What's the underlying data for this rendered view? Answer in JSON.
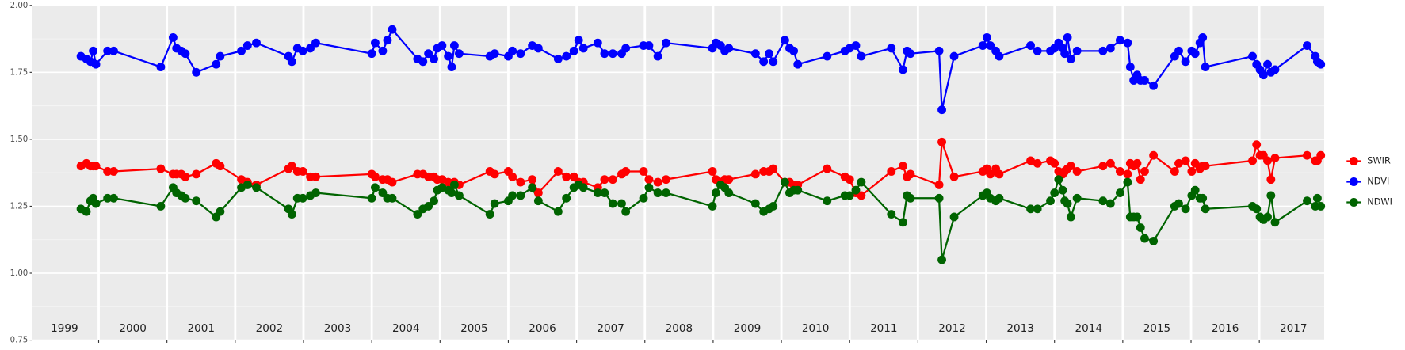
{
  "chart_data": {
    "type": "line",
    "x": [
      1999.74,
      1999.82,
      1999.88,
      1999.92,
      1999.96,
      2000.13,
      2000.22,
      2000.91,
      2001.09,
      2001.14,
      2001.21,
      2001.27,
      2001.43,
      2001.72,
      2001.78,
      2002.09,
      2002.18,
      2002.31,
      2002.78,
      2002.83,
      2002.91,
      2002.99,
      2003.1,
      2003.18,
      2004.0,
      2004.05,
      2004.16,
      2004.23,
      2004.3,
      2004.67,
      2004.75,
      2004.83,
      2004.91,
      2004.96,
      2005.03,
      2005.12,
      2005.17,
      2005.21,
      2005.28,
      2005.73,
      2005.8,
      2006.0,
      2006.06,
      2006.18,
      2006.35,
      2006.44,
      2006.73,
      2006.85,
      2006.96,
      2007.03,
      2007.1,
      2007.31,
      2007.41,
      2007.53,
      2007.66,
      2007.72,
      2007.98,
      2008.06,
      2008.19,
      2008.31,
      2008.99,
      2009.04,
      2009.11,
      2009.17,
      2009.23,
      2009.62,
      2009.74,
      2009.82,
      2009.88,
      2010.05,
      2010.12,
      2010.18,
      2010.24,
      2010.67,
      2010.93,
      2011.0,
      2011.09,
      2011.17,
      2011.61,
      2011.78,
      2011.84,
      2011.89,
      2012.31,
      2012.35,
      2012.53,
      2012.95,
      2013.01,
      2013.06,
      2013.14,
      2013.19,
      2013.65,
      2013.75,
      2013.94,
      2014.0,
      2014.06,
      2014.12,
      2014.15,
      2014.19,
      2014.24,
      2014.33,
      2014.71,
      2014.82,
      2014.96,
      2015.07,
      2015.11,
      2015.16,
      2015.21,
      2015.26,
      2015.32,
      2015.45,
      2015.76,
      2015.82,
      2015.92,
      2016.01,
      2016.06,
      2016.13,
      2016.17,
      2016.21,
      2016.9,
      2016.96,
      2017.01,
      2017.06,
      2017.12,
      2017.17,
      2017.23,
      2017.7,
      2017.82,
      2017.85,
      2017.9
    ],
    "series": [
      {
        "name": "SWIR",
        "color": "#ff0000",
        "values": [
          1.4,
          1.41,
          1.4,
          1.4,
          1.4,
          1.38,
          1.38,
          1.39,
          1.37,
          1.37,
          1.37,
          1.36,
          1.37,
          1.41,
          1.4,
          1.35,
          1.34,
          1.33,
          1.39,
          1.4,
          1.38,
          1.38,
          1.36,
          1.36,
          1.37,
          1.36,
          1.35,
          1.35,
          1.34,
          1.37,
          1.37,
          1.36,
          1.36,
          1.35,
          1.35,
          1.34,
          1.33,
          1.34,
          1.33,
          1.38,
          1.37,
          1.38,
          1.36,
          1.34,
          1.35,
          1.3,
          1.38,
          1.36,
          1.36,
          1.34,
          1.34,
          1.32,
          1.35,
          1.35,
          1.37,
          1.38,
          1.38,
          1.35,
          1.34,
          1.35,
          1.38,
          1.35,
          1.34,
          1.35,
          1.35,
          1.37,
          1.38,
          1.38,
          1.39,
          1.34,
          1.34,
          1.33,
          1.33,
          1.39,
          1.36,
          1.35,
          1.3,
          1.29,
          1.38,
          1.4,
          1.36,
          1.37,
          1.33,
          1.49,
          1.36,
          1.38,
          1.39,
          1.37,
          1.39,
          1.37,
          1.42,
          1.41,
          1.42,
          1.41,
          1.38,
          1.37,
          1.38,
          1.39,
          1.4,
          1.38,
          1.4,
          1.41,
          1.38,
          1.37,
          1.41,
          1.4,
          1.41,
          1.35,
          1.38,
          1.44,
          1.38,
          1.41,
          1.42,
          1.38,
          1.41,
          1.39,
          1.4,
          1.4,
          1.42,
          1.48,
          1.44,
          1.44,
          1.42,
          1.35,
          1.43,
          1.44,
          1.42,
          1.42,
          1.44
        ]
      },
      {
        "name": "NDVI",
        "color": "#0000ff",
        "values": [
          1.81,
          1.8,
          1.79,
          1.83,
          1.78,
          1.83,
          1.83,
          1.77,
          1.88,
          1.84,
          1.83,
          1.82,
          1.75,
          1.78,
          1.81,
          1.83,
          1.85,
          1.86,
          1.81,
          1.79,
          1.84,
          1.83,
          1.84,
          1.86,
          1.82,
          1.86,
          1.83,
          1.87,
          1.91,
          1.8,
          1.79,
          1.82,
          1.8,
          1.84,
          1.85,
          1.81,
          1.77,
          1.85,
          1.82,
          1.81,
          1.82,
          1.81,
          1.83,
          1.82,
          1.85,
          1.84,
          1.8,
          1.81,
          1.83,
          1.87,
          1.84,
          1.86,
          1.82,
          1.82,
          1.82,
          1.84,
          1.85,
          1.85,
          1.81,
          1.86,
          1.84,
          1.86,
          1.85,
          1.83,
          1.84,
          1.82,
          1.79,
          1.82,
          1.79,
          1.87,
          1.84,
          1.83,
          1.78,
          1.81,
          1.83,
          1.84,
          1.85,
          1.81,
          1.84,
          1.76,
          1.83,
          1.82,
          1.83,
          1.61,
          1.81,
          1.85,
          1.88,
          1.85,
          1.83,
          1.81,
          1.85,
          1.83,
          1.83,
          1.84,
          1.86,
          1.84,
          1.82,
          1.88,
          1.8,
          1.83,
          1.83,
          1.84,
          1.87,
          1.86,
          1.77,
          1.72,
          1.74,
          1.72,
          1.72,
          1.7,
          1.81,
          1.83,
          1.79,
          1.83,
          1.82,
          1.86,
          1.88,
          1.77,
          1.81,
          1.78,
          1.76,
          1.74,
          1.78,
          1.75,
          1.76,
          1.85,
          1.81,
          1.79,
          1.78
        ]
      },
      {
        "name": "NDWI",
        "color": "#006400",
        "values": [
          1.24,
          1.23,
          1.27,
          1.28,
          1.26,
          1.28,
          1.28,
          1.25,
          1.32,
          1.3,
          1.29,
          1.28,
          1.27,
          1.21,
          1.23,
          1.32,
          1.33,
          1.32,
          1.24,
          1.22,
          1.28,
          1.28,
          1.29,
          1.3,
          1.28,
          1.32,
          1.3,
          1.28,
          1.28,
          1.22,
          1.24,
          1.25,
          1.27,
          1.31,
          1.32,
          1.31,
          1.3,
          1.33,
          1.29,
          1.22,
          1.26,
          1.27,
          1.29,
          1.29,
          1.32,
          1.27,
          1.23,
          1.28,
          1.32,
          1.33,
          1.32,
          1.3,
          1.3,
          1.26,
          1.26,
          1.23,
          1.28,
          1.32,
          1.3,
          1.3,
          1.25,
          1.3,
          1.33,
          1.32,
          1.3,
          1.26,
          1.23,
          1.24,
          1.25,
          1.34,
          1.3,
          1.31,
          1.31,
          1.27,
          1.29,
          1.29,
          1.31,
          1.34,
          1.22,
          1.19,
          1.29,
          1.28,
          1.28,
          1.05,
          1.21,
          1.29,
          1.3,
          1.28,
          1.27,
          1.28,
          1.24,
          1.24,
          1.27,
          1.3,
          1.35,
          1.31,
          1.27,
          1.26,
          1.21,
          1.28,
          1.27,
          1.26,
          1.3,
          1.34,
          1.21,
          1.21,
          1.21,
          1.17,
          1.13,
          1.12,
          1.25,
          1.26,
          1.24,
          1.29,
          1.31,
          1.28,
          1.28,
          1.24,
          1.25,
          1.24,
          1.21,
          1.2,
          1.21,
          1.29,
          1.19,
          1.27,
          1.25,
          1.28,
          1.25
        ]
      }
    ],
    "xlim": [
      1999.03,
      2017.95
    ],
    "xticks": [
      2000,
      2001,
      2002,
      2003,
      2004,
      2005,
      2006,
      2007,
      2008,
      2009,
      2010,
      2011,
      2012,
      2013,
      2014,
      2015,
      2016,
      2017
    ],
    "year_labels": [
      {
        "value": 1999.5,
        "label": "1999"
      },
      {
        "value": 2000.5,
        "label": "2000"
      },
      {
        "value": 2001.5,
        "label": "2001"
      },
      {
        "value": 2002.5,
        "label": "2002"
      },
      {
        "value": 2003.5,
        "label": "2003"
      },
      {
        "value": 2004.5,
        "label": "2004"
      },
      {
        "value": 2005.5,
        "label": "2005"
      },
      {
        "value": 2006.5,
        "label": "2006"
      },
      {
        "value": 2007.5,
        "label": "2007"
      },
      {
        "value": 2008.5,
        "label": "2008"
      },
      {
        "value": 2009.5,
        "label": "2009"
      },
      {
        "value": 2010.5,
        "label": "2010"
      },
      {
        "value": 2011.5,
        "label": "2011"
      },
      {
        "value": 2012.5,
        "label": "2012"
      },
      {
        "value": 2013.5,
        "label": "2013"
      },
      {
        "value": 2014.5,
        "label": "2014"
      },
      {
        "value": 2015.5,
        "label": "2015"
      },
      {
        "value": 2016.5,
        "label": "2016"
      },
      {
        "value": 2017.5,
        "label": "2017"
      }
    ],
    "ylim": [
      0.75,
      2.0
    ],
    "yticks": [
      {
        "value": 0.75,
        "label": "0.75"
      },
      {
        "value": 1.0,
        "label": "1.00"
      },
      {
        "value": 1.25,
        "label": "1.25"
      },
      {
        "value": 1.5,
        "label": "1.50"
      },
      {
        "value": 1.75,
        "label": "1.75"
      },
      {
        "value": 2.0,
        "label": "2.00"
      }
    ],
    "grid": true,
    "legend": "right"
  }
}
